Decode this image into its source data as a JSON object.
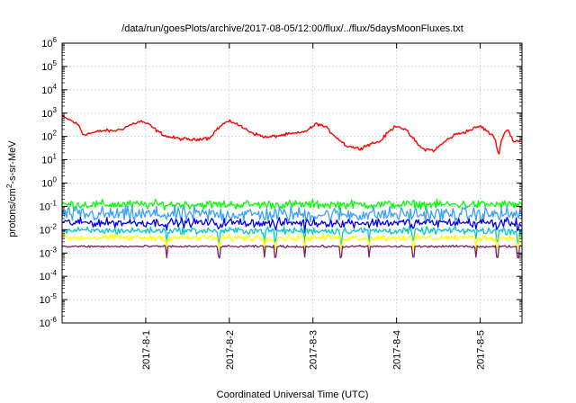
{
  "chart_data": {
    "type": "line",
    "title": "/data/run/goesPlots/archive/2017-08-05/12:00/flux/../flux/5daysMoonFluxes.txt",
    "xlabel": "Coordinated Universal Time (UTC)",
    "ylabel_parts": {
      "base": "protons/cm",
      "sup": "2",
      "rest": "-s-sr-MeV"
    },
    "x_tick_labels": [
      "2017-8-1",
      "2017-8-2",
      "2017-8-3",
      "2017-8-4",
      "2017-8-5"
    ],
    "xlim_days": [
      0,
      5.5
    ],
    "x_ticks_days": [
      1,
      2,
      3,
      4,
      5
    ],
    "y_scale": "log",
    "ylim": [
      1e-06,
      1000000.0
    ],
    "y_tick_exponents": [
      -6,
      -5,
      -4,
      -3,
      -2,
      -1,
      0,
      1,
      2,
      3,
      4,
      5,
      6
    ],
    "y_tick_base": "10",
    "grid": true,
    "series": [
      {
        "color": "#ff0000",
        "lognoise": 0.06,
        "keypoints": [
          [
            0.0,
            700
          ],
          [
            0.1,
            500
          ],
          [
            0.2,
            300
          ],
          [
            0.25,
            120
          ],
          [
            0.35,
            140
          ],
          [
            0.5,
            180
          ],
          [
            0.6,
            170
          ],
          [
            0.7,
            200
          ],
          [
            0.85,
            350
          ],
          [
            0.95,
            450
          ],
          [
            1.05,
            300
          ],
          [
            1.15,
            160
          ],
          [
            1.25,
            100
          ],
          [
            1.4,
            80
          ],
          [
            1.6,
            70
          ],
          [
            1.7,
            90
          ],
          [
            1.75,
            80
          ],
          [
            1.85,
            200
          ],
          [
            1.95,
            400
          ],
          [
            2.05,
            420
          ],
          [
            2.15,
            250
          ],
          [
            2.3,
            130
          ],
          [
            2.45,
            90
          ],
          [
            2.6,
            110
          ],
          [
            2.75,
            130
          ],
          [
            2.85,
            140
          ],
          [
            2.95,
            200
          ],
          [
            3.05,
            360
          ],
          [
            3.15,
            250
          ],
          [
            3.3,
            80
          ],
          [
            3.4,
            40
          ],
          [
            3.55,
            30
          ],
          [
            3.7,
            50
          ],
          [
            3.8,
            60
          ],
          [
            3.9,
            150
          ],
          [
            4.0,
            300
          ],
          [
            4.1,
            200
          ],
          [
            4.2,
            80
          ],
          [
            4.3,
            30
          ],
          [
            4.45,
            25
          ],
          [
            4.6,
            70
          ],
          [
            4.7,
            120
          ],
          [
            4.8,
            150
          ],
          [
            4.9,
            200
          ],
          [
            5.0,
            280
          ],
          [
            5.1,
            150
          ],
          [
            5.18,
            80
          ],
          [
            5.22,
            15
          ],
          [
            5.27,
            120
          ],
          [
            5.33,
            200
          ],
          [
            5.4,
            60
          ],
          [
            5.5,
            70
          ]
        ]
      },
      {
        "color": "#00ff00",
        "base": 0.12,
        "lognoise": 0.16
      },
      {
        "color": "#3aa0ff",
        "base": 0.045,
        "lognoise": 0.28
      },
      {
        "color": "#0000ee",
        "base": 0.02,
        "lognoise": 0.16
      },
      {
        "color": "#00c8c8",
        "base": 0.009,
        "lognoise": 0.13
      },
      {
        "color": "#ffff00",
        "base": 0.0045,
        "lognoise": 0.12
      },
      {
        "color": "#7b2060",
        "base": 0.0019,
        "lognoise": 0.04
      }
    ]
  }
}
